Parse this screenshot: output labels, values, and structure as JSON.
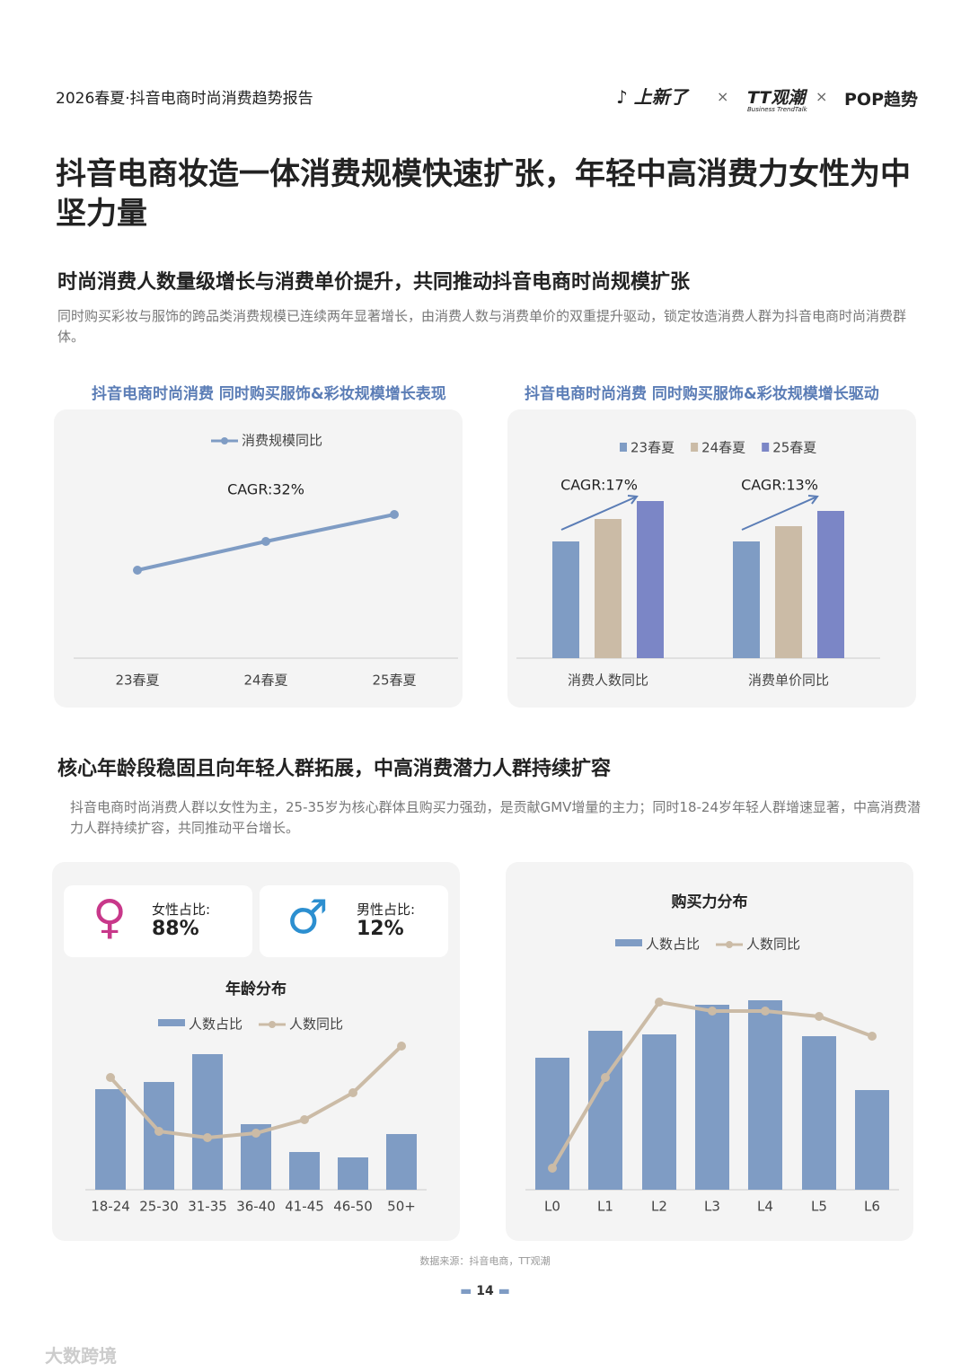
{
  "header": {
    "report": "2026春夏·抖音电商时尚消费趋势报告",
    "logo1": "上新了",
    "sep1": "×",
    "logo2": "TT观潮",
    "logo2_sub": "Business TrendTalk",
    "sep2": "×",
    "logo3": "POP趋势"
  },
  "title": "抖音电商妆造一体消费规模快速扩张，年轻中高消费力女性为中坚力量",
  "section1": {
    "heading": "时尚消费人数量级增长与消费单价提升，共同推动抖音电商时尚规模扩张",
    "text": "同时购买彩妆与服饰的跨品类消费规模已连续两年显著增长，由消费人数与消费单价的双重提升驱动，锁定妆造消费人群为抖音电商时尚消费群体。"
  },
  "section2": {
    "heading": "核心年龄段稳固且向年轻人群拓展，中高消费潜力人群持续扩容",
    "text": "抖音电商时尚消费人群以女性为主，25-35岁为核心群体且购买力强劲，是贡献GMV增量的主力；同时18-24岁年轻人群增速显著，中高消费潜力人群持续扩容，共同推动平台增长。"
  },
  "gender": [
    {
      "label": "女性占比:",
      "value": "88%"
    },
    {
      "label": "男性占比:",
      "value": "12%"
    }
  ],
  "source": "数据来源：抖音电商，TT观潮",
  "page": "14",
  "watermark": "大数跨境",
  "chart_data": [
    {
      "type": "line",
      "title": "抖音电商时尚消费 同时购买服饰&彩妆规模增长表现",
      "annotation": "CAGR:32%",
      "categories": [
        "23春夏",
        "24春夏",
        "25春夏"
      ],
      "series": [
        {
          "name": "消费规模同比",
          "color": "#7f9cc4",
          "values": [
            98,
            130,
            160
          ]
        }
      ]
    },
    {
      "type": "bar",
      "title": "抖音电商时尚消费 同时购买服饰&彩妆规模增长驱动",
      "annotations": [
        "CAGR:17%",
        "CAGR:13%"
      ],
      "categories": [
        "消费人数同比",
        "消费单价同比"
      ],
      "series": [
        {
          "name": "23春夏",
          "color": "#7f9cc4",
          "values": [
            130,
            130
          ]
        },
        {
          "name": "24春夏",
          "color": "#cbbba6",
          "values": [
            155,
            147
          ]
        },
        {
          "name": "25春夏",
          "color": "#7b86c6",
          "values": [
            175,
            164
          ]
        }
      ]
    },
    {
      "type": "combo",
      "title": "年龄分布",
      "categories": [
        "18-24",
        "25-30",
        "31-35",
        "36-40",
        "41-45",
        "46-50",
        "50+"
      ],
      "series": [
        {
          "name": "人数占比",
          "type": "bar",
          "color": "#7f9cc4",
          "values": [
            112,
            120,
            151,
            73,
            42,
            36,
            62
          ]
        },
        {
          "name": "人数同比",
          "type": "line",
          "color": "#cbbba6",
          "values": [
            125,
            65,
            58,
            63,
            78,
            108,
            160
          ]
        }
      ]
    },
    {
      "type": "combo",
      "title": "购买力分布",
      "categories": [
        "L0",
        "L1",
        "L2",
        "L3",
        "L4",
        "L5",
        "L6"
      ],
      "series": [
        {
          "name": "人数占比",
          "type": "bar",
          "color": "#7f9cc4",
          "values": [
            147,
            177,
            173,
            206,
            211,
            171,
            111
          ]
        },
        {
          "name": "人数同比",
          "type": "line",
          "color": "#cbbba6",
          "values": [
            24,
            125,
            209,
            199,
            199,
            193,
            171
          ]
        }
      ]
    }
  ]
}
